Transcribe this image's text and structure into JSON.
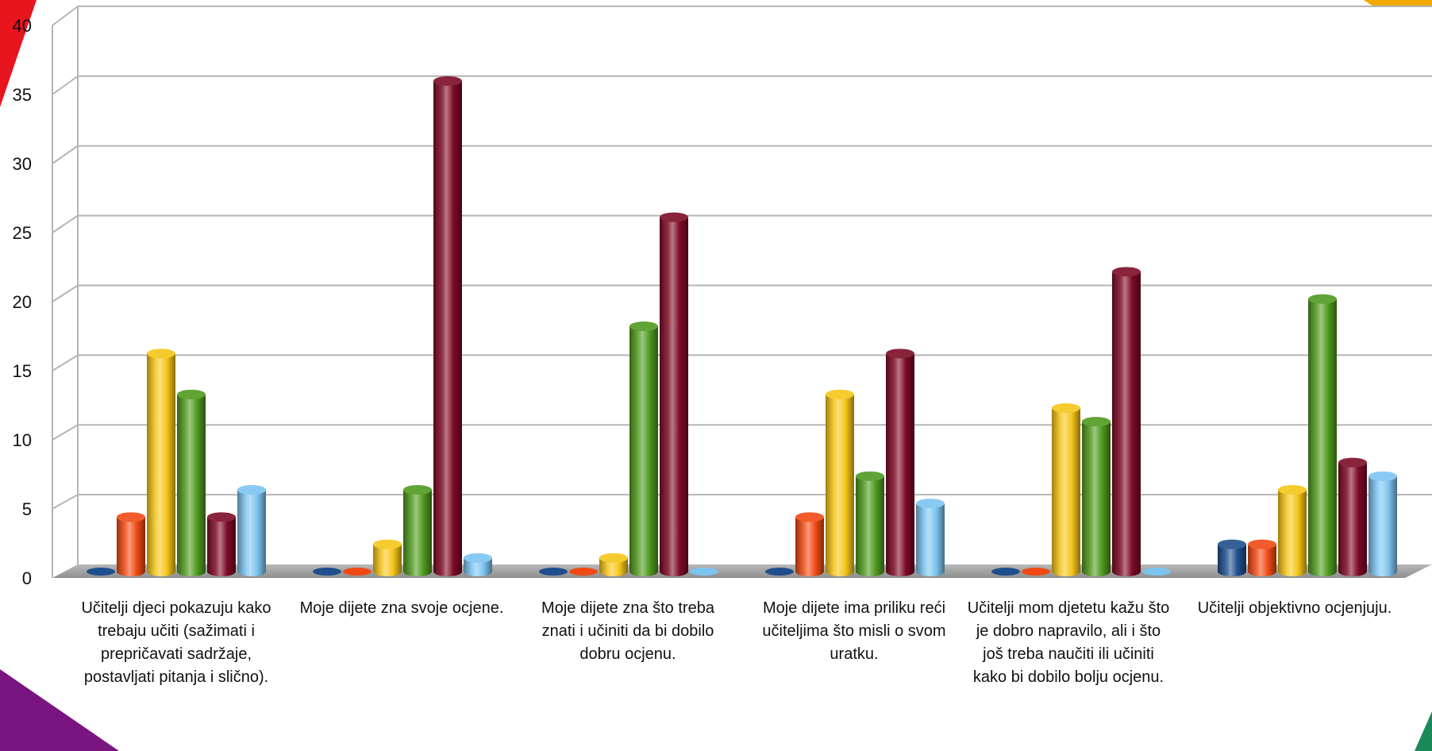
{
  "chart_data": {
    "type": "bar",
    "title": "",
    "xlabel": "",
    "ylabel": "",
    "ylim": [
      0,
      40
    ],
    "yticks": [
      0,
      5,
      10,
      15,
      20,
      25,
      30,
      35,
      40
    ],
    "grid": true,
    "legend": "none",
    "categories": [
      "Učitelji djeci pokazuju kako trebaju učiti (sažimati i prepričavati sadržaje, postavljati pitanja i slično).",
      "Moje dijete zna svoje ocjene.",
      "Moje dijete zna što treba znati i učiniti da bi dobilo dobru ocjenu.",
      "Moje dijete ima priliku reći učiteljima što misli o svom uratku.",
      "Učitelji mom djetetu kažu što je dobro napravilo, ali i što još treba naučiti ili učiniti kako bi dobilo bolju ocjenu.",
      "Učitelji objektivno ocjenjuju."
    ],
    "series": [
      {
        "color": "#1f4e8c",
        "values": [
          0,
          0,
          0,
          0,
          0,
          2
        ]
      },
      {
        "color": "#f04a14",
        "values": [
          4,
          0,
          0,
          4,
          0,
          2
        ]
      },
      {
        "color": "#f5c518",
        "values": [
          16,
          2,
          1,
          13,
          12,
          6
        ]
      },
      {
        "color": "#4e9a1e",
        "values": [
          13,
          6,
          18,
          7,
          11,
          20
        ]
      },
      {
        "color": "#7d0a26",
        "values": [
          4,
          36,
          26,
          16,
          22,
          8
        ]
      },
      {
        "color": "#7cc4f0",
        "values": [
          6,
          1,
          0,
          5,
          0,
          7
        ]
      }
    ]
  },
  "decor": {
    "corner_colors": [
      "#e8141e",
      "#f2a900",
      "#7a1481",
      "#1a8a5a"
    ]
  }
}
